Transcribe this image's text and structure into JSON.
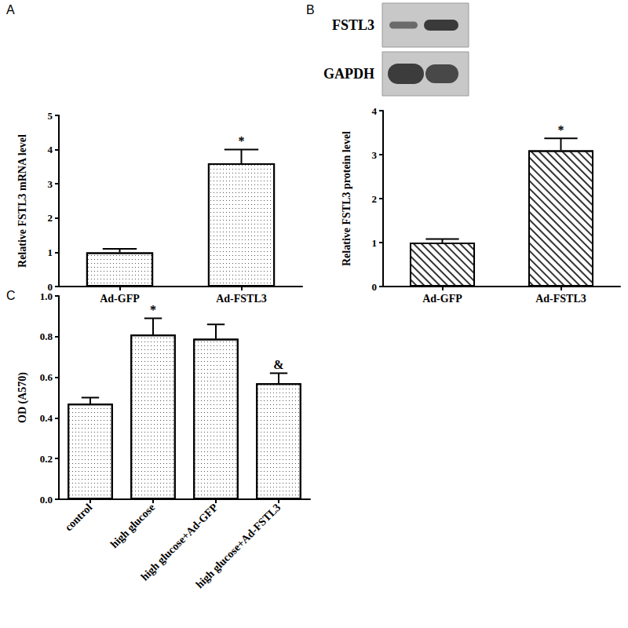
{
  "chart_data": [
    {
      "type": "bar",
      "title": "A",
      "categories": [
        "Ad-GFP",
        "Ad-FSTL3"
      ],
      "values": [
        1.0,
        3.6
      ],
      "errors": [
        0.1,
        0.4
      ],
      "annotations": [
        {
          "category": "Ad-FSTL3",
          "text": "*"
        }
      ],
      "color": "#ffffff",
      "y_label": "Relative FSTL3 mRNA level",
      "ylim": [
        0,
        5
      ],
      "yticks": [
        0,
        1,
        2,
        3,
        4,
        5
      ],
      "grid": false
    },
    {
      "type": "bar",
      "title": "B",
      "blot": {
        "rows": [
          "FSTL3",
          "GAPDH"
        ]
      },
      "categories": [
        "Ad-GFP",
        "Ad-FSTL3"
      ],
      "values": [
        1.0,
        3.1
      ],
      "errors": [
        0.08,
        0.27
      ],
      "annotations": [
        {
          "category": "Ad-FSTL3",
          "text": "*"
        }
      ],
      "color": "#ffffff",
      "y_label": "Relative FSTL3 protein level",
      "ylim": [
        0,
        4
      ],
      "yticks": [
        0,
        1,
        2,
        3,
        4
      ],
      "grid": false
    },
    {
      "type": "bar",
      "title": "C",
      "categories": [
        "control",
        "high glucose",
        "high glucose+Ad-GFP",
        "high glucose+Ad-FSTL3"
      ],
      "values": [
        0.47,
        0.81,
        0.79,
        0.57
      ],
      "errors": [
        0.03,
        0.08,
        0.07,
        0.05
      ],
      "annotations": [
        {
          "category": "high glucose",
          "text": "*"
        },
        {
          "category": "high glucose+Ad-FSTL3",
          "text": "&"
        }
      ],
      "color": "#ffffff",
      "y_label": "OD (A570)",
      "ylim": [
        0,
        1.0
      ],
      "yticks": [
        {
          "value": 0,
          "label": "0.0"
        },
        0.2,
        0.4,
        0.6,
        0.8,
        {
          "value": 1.0,
          "label": "1.0"
        }
      ],
      "grid": false
    }
  ]
}
